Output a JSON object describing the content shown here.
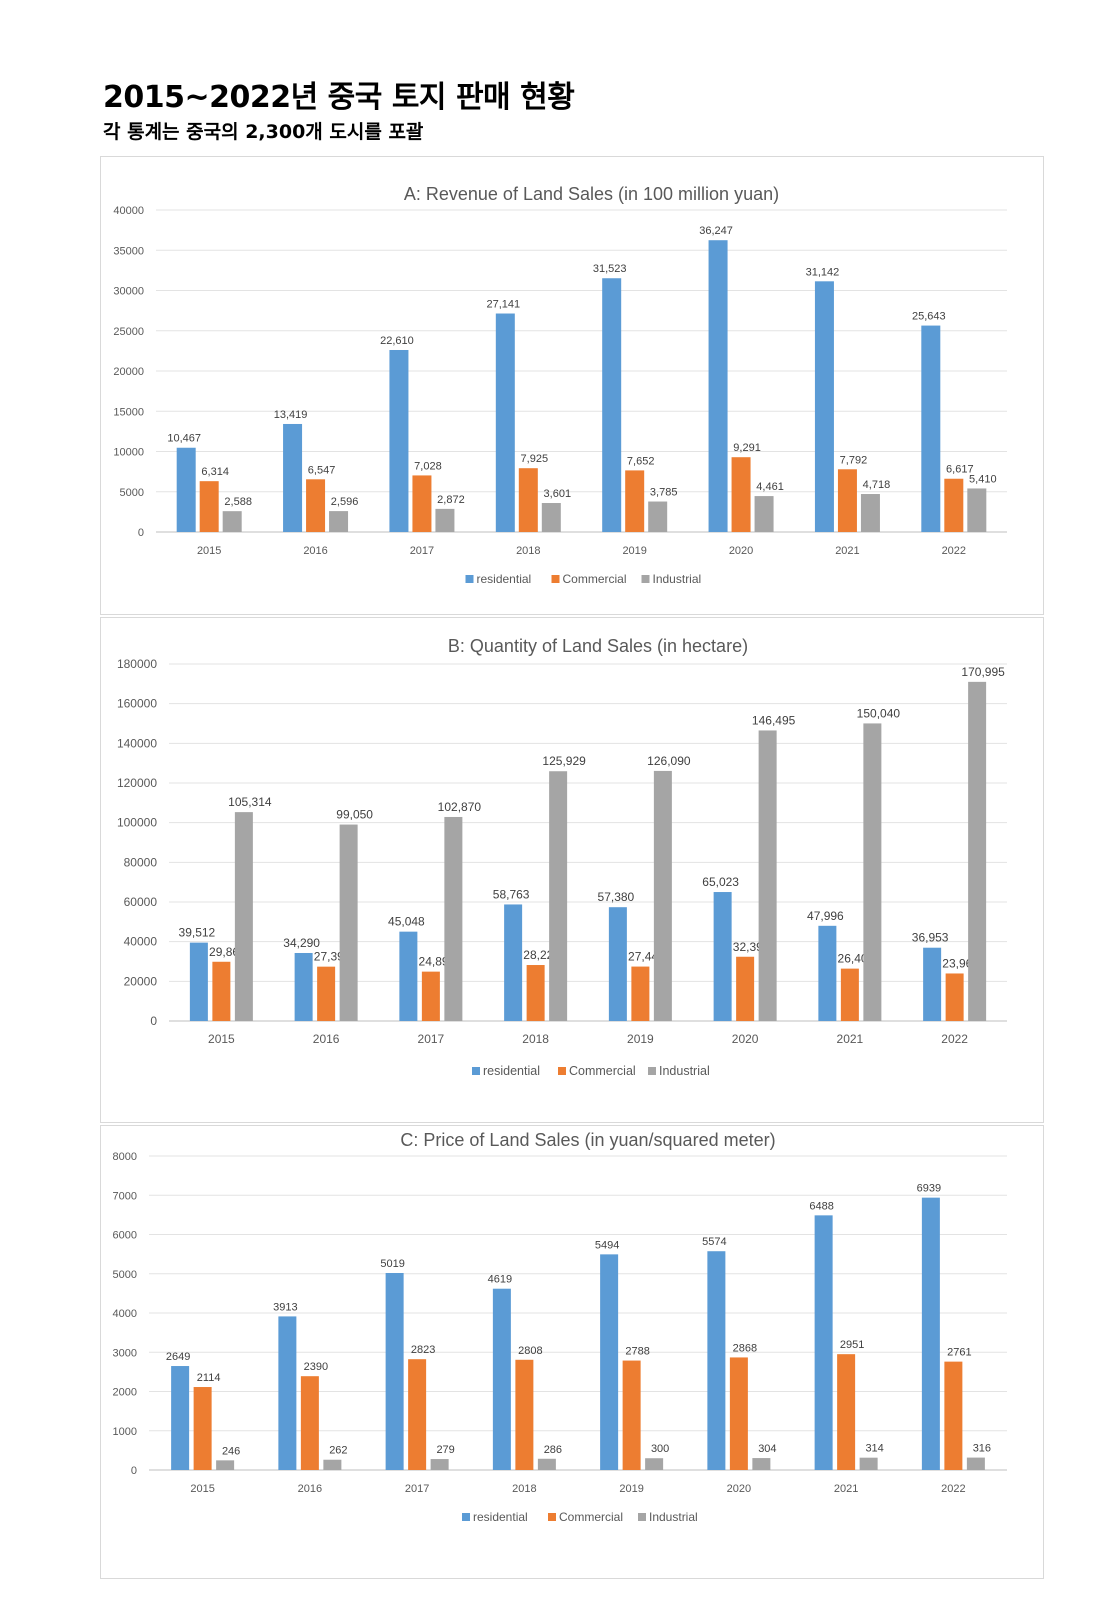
{
  "page": {
    "title": "2015~2022년 중국 토지 판매 현황",
    "subtitle": "각 통계는 중국의 2,300개 도시를 포괄"
  },
  "colors": {
    "residential": "#5B9BD5",
    "commercial": "#ED7D31",
    "industrial": "#A5A5A5"
  },
  "chart_data": [
    {
      "type": "bar",
      "title": "A: Revenue of Land Sales (in 100 million yuan)",
      "categories": [
        "2015",
        "2016",
        "2017",
        "2018",
        "2019",
        "2020",
        "2021",
        "2022"
      ],
      "series": [
        {
          "name": "residential",
          "values": [
            10467,
            13419,
            22610,
            27141,
            31523,
            36247,
            31142,
            25643
          ],
          "labels": [
            "10,467",
            "13,419",
            "22,610",
            "27,141",
            "31,523",
            "36,247",
            "31,142",
            "25,643"
          ]
        },
        {
          "name": "Commercial",
          "values": [
            6314,
            6547,
            7028,
            7925,
            7652,
            9291,
            7792,
            6617
          ],
          "labels": [
            "6,314",
            "6,547",
            "7,028",
            "7,925",
            "7,652",
            "9,291",
            "7,792",
            "6,617"
          ]
        },
        {
          "name": "Industrial",
          "values": [
            2588,
            2596,
            2872,
            3601,
            3785,
            4461,
            4718,
            5410
          ],
          "labels": [
            "2,588",
            "2,596",
            "2,872",
            "3,601",
            "3,785",
            "4,461",
            "4,718",
            "5,410"
          ]
        }
      ],
      "yticks": [
        "0",
        "5000",
        "10000",
        "15000",
        "20000",
        "25000",
        "30000",
        "35000",
        "40000"
      ],
      "ylim": [
        0,
        40000
      ],
      "grid": true,
      "legend_position": "bottom"
    },
    {
      "type": "bar",
      "title": "B: Quantity of Land Sales (in hectare)",
      "categories": [
        "2015",
        "2016",
        "2017",
        "2018",
        "2019",
        "2020",
        "2021",
        "2022"
      ],
      "series": [
        {
          "name": "residential",
          "values": [
            39512,
            34290,
            45048,
            58763,
            57380,
            65023,
            47996,
            36953
          ],
          "labels": [
            "39,512",
            "34,290",
            "45,048",
            "58,763",
            "57,380",
            "65,023",
            "47,996",
            "36,953"
          ]
        },
        {
          "name": "Commercial",
          "values": [
            29868,
            27399,
            24891,
            28223,
            27442,
            32394,
            26406,
            23963
          ],
          "labels": [
            "29,868",
            "27,399",
            "24,891",
            "28,223",
            "27,442",
            "32,394",
            "26,406",
            "23,963"
          ]
        },
        {
          "name": "Industrial",
          "values": [
            105314,
            99050,
            102870,
            125929,
            126090,
            146495,
            150040,
            170995
          ],
          "labels": [
            "105,314",
            "99,050",
            "102,870",
            "125,929",
            "126,090",
            "146,495",
            "150,040",
            "170,995"
          ]
        }
      ],
      "yticks": [
        "0",
        "20000",
        "40000",
        "60000",
        "80000",
        "100000",
        "120000",
        "140000",
        "160000",
        "180000"
      ],
      "ylim": [
        0,
        180000
      ],
      "grid": true,
      "legend_position": "bottom"
    },
    {
      "type": "bar",
      "title": "C: Price of Land Sales (in yuan/squared meter)",
      "categories": [
        "2015",
        "2016",
        "2017",
        "2018",
        "2019",
        "2020",
        "2021",
        "2022"
      ],
      "series": [
        {
          "name": "residential",
          "values": [
            2649,
            3913,
            5019,
            4619,
            5494,
            5574,
            6488,
            6939
          ],
          "labels": [
            "2649",
            "3913",
            "5019",
            "4619",
            "5494",
            "5574",
            "6488",
            "6939"
          ]
        },
        {
          "name": "Commercial",
          "values": [
            2114,
            2390,
            2823,
            2808,
            2788,
            2868,
            2951,
            2761
          ],
          "labels": [
            "2114",
            "2390",
            "2823",
            "2808",
            "2788",
            "2868",
            "2951",
            "2761"
          ]
        },
        {
          "name": "Industrial",
          "values": [
            246,
            262,
            279,
            286,
            300,
            304,
            314,
            316
          ],
          "labels": [
            "246",
            "262",
            "279",
            "286",
            "300",
            "304",
            "314",
            "316"
          ]
        }
      ],
      "yticks": [
        "0",
        "1000",
        "2000",
        "3000",
        "4000",
        "5000",
        "6000",
        "7000",
        "8000"
      ],
      "ylim": [
        0,
        8000
      ],
      "grid": true,
      "legend_position": "bottom"
    }
  ]
}
